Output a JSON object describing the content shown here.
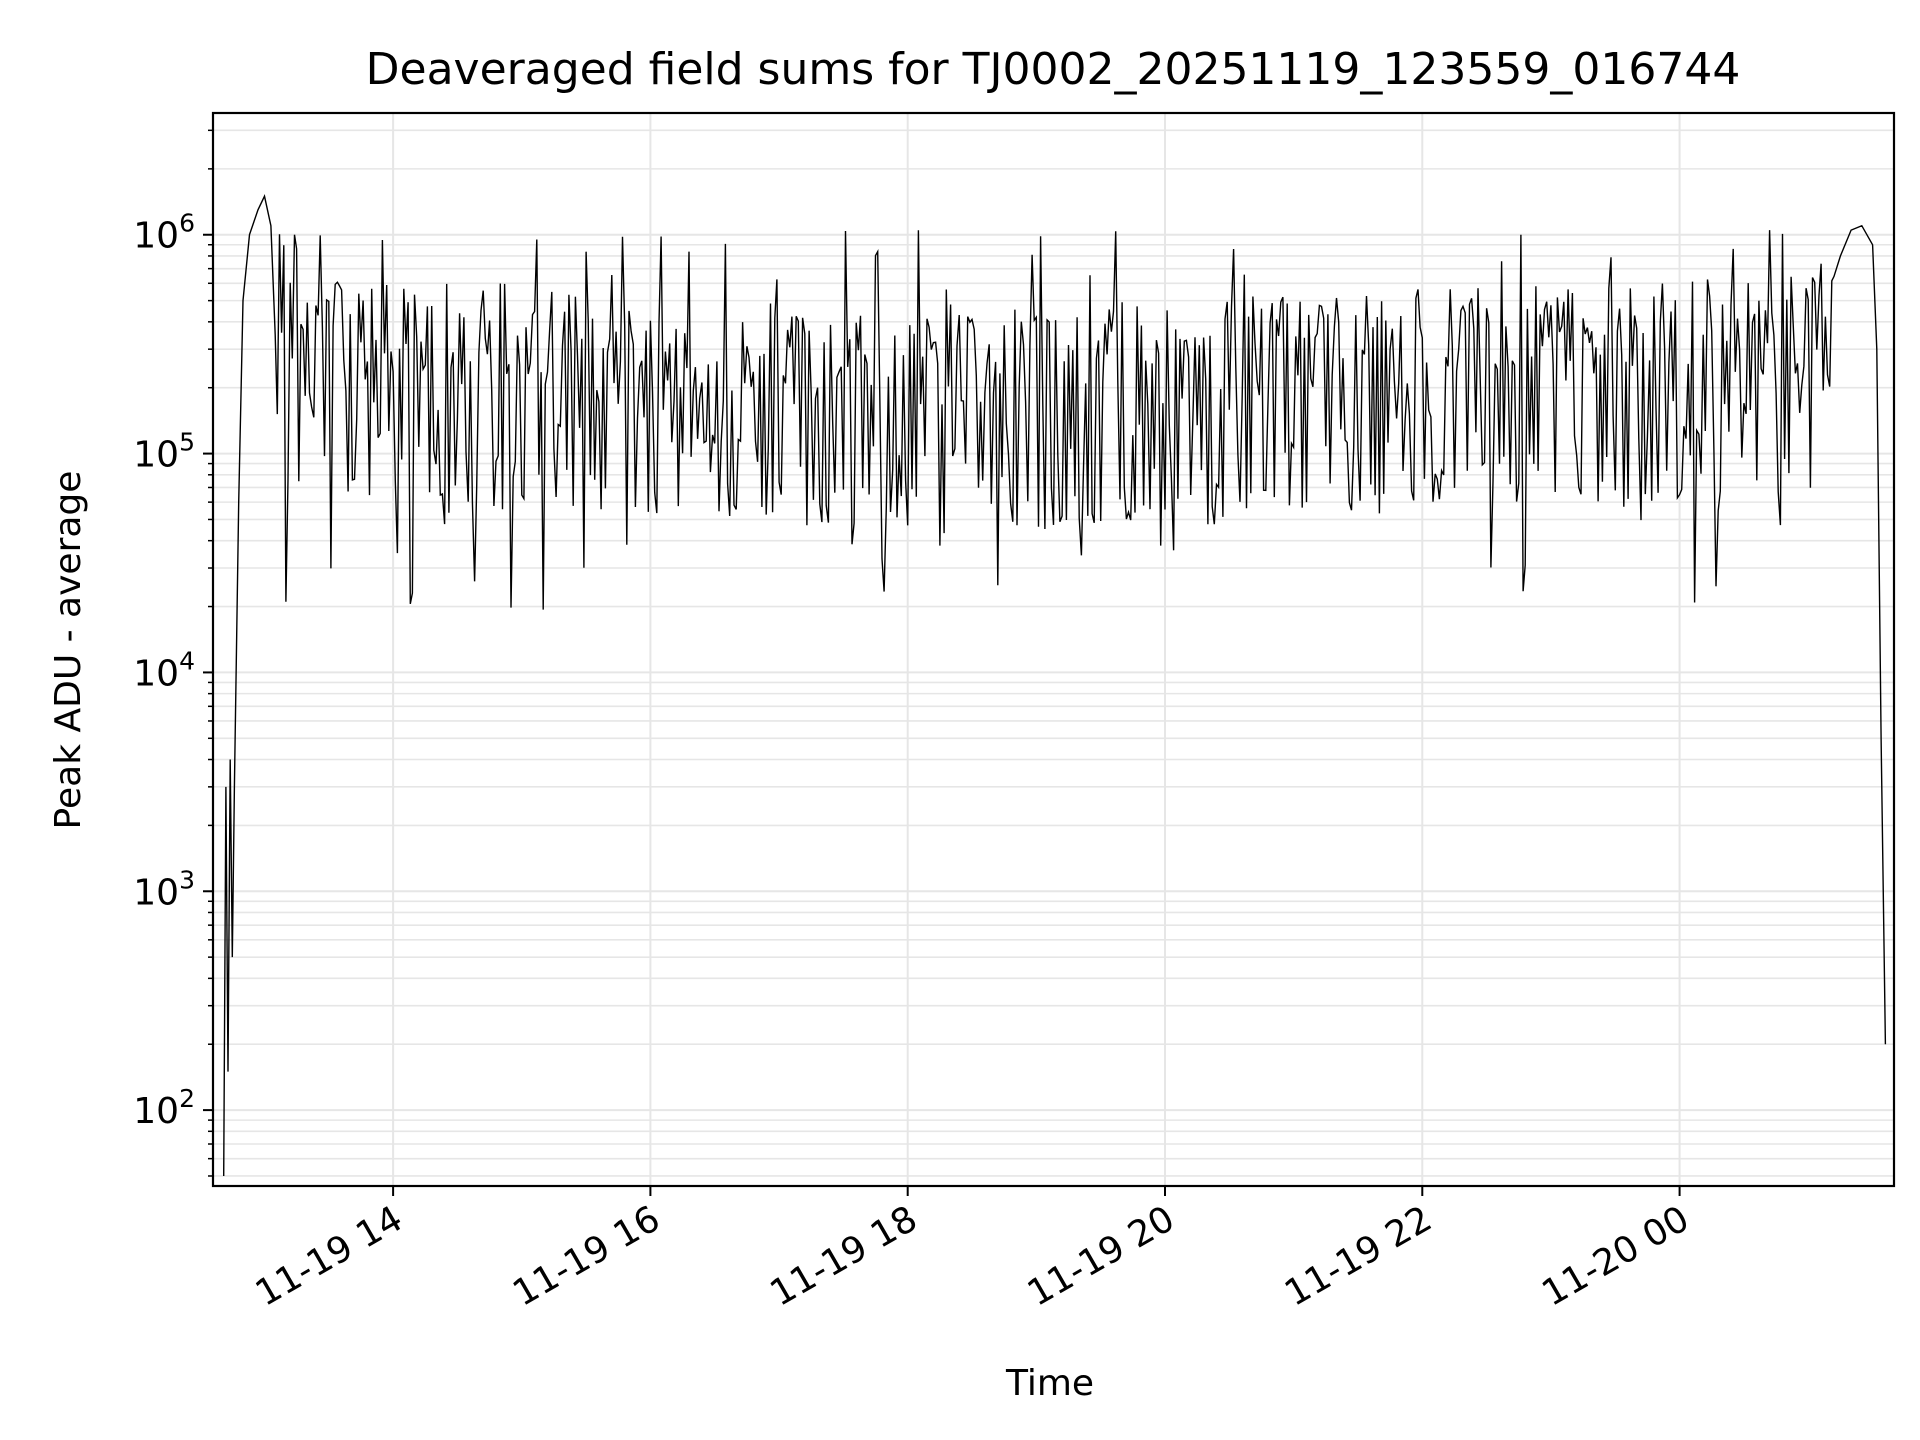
{
  "chart_data": {
    "type": "line",
    "title": "Deaveraged field sums for TJ0002_20251119_123559_016744",
    "xlabel": "Time",
    "ylabel": "Peak ADU - average",
    "yscale": "log",
    "ylim": [
      45,
      3600000
    ],
    "xlim": [
      "2025-11-19 12:36",
      "2025-11-20 01:40"
    ],
    "grid": true,
    "line_color": "#000000",
    "x_ticks": [
      {
        "x": "2025-11-19 14:00",
        "label": "11-19 14"
      },
      {
        "x": "2025-11-19 16:00",
        "label": "11-19 16"
      },
      {
        "x": "2025-11-19 18:00",
        "label": "11-19 18"
      },
      {
        "x": "2025-11-19 20:00",
        "label": "11-19 20"
      },
      {
        "x": "2025-11-19 22:00",
        "label": "11-19 22"
      },
      {
        "x": "2025-11-20 00:00",
        "label": "11-20 00"
      }
    ],
    "y_ticks": [
      {
        "value": 100,
        "base": "10",
        "exp": "2"
      },
      {
        "value": 1000,
        "base": "10",
        "exp": "3"
      },
      {
        "value": 10000,
        "base": "10",
        "exp": "4"
      },
      {
        "value": 100000,
        "base": "10",
        "exp": "5"
      },
      {
        "value": 1000000,
        "base": "10",
        "exp": "6"
      }
    ],
    "series": [
      {
        "x": [
          "2025-11-19 12:41",
          "2025-11-19 12:42",
          "2025-11-19 12:43",
          "2025-11-19 12:44",
          "2025-11-19 12:45",
          "2025-11-19 12:46",
          "2025-11-19 12:48",
          "2025-11-19 12:50",
          "2025-11-19 12:53",
          "2025-11-19 12:57",
          "2025-11-19 13:00",
          "2025-11-19 13:03",
          "2025-11-19 13:05",
          "2025-11-19 13:08",
          "2025-11-19 13:12",
          "2025-11-19 13:20",
          "2025-11-19 13:30",
          "2025-11-19 13:45",
          "2025-11-19 14:00",
          "2025-11-19 14:30",
          "2025-11-19 15:00",
          "2025-11-19 15:30",
          "2025-11-19 16:00",
          "2025-11-19 16:30",
          "2025-11-19 17:00",
          "2025-11-19 17:30",
          "2025-11-19 18:00",
          "2025-11-19 18:30",
          "2025-11-19 19:00",
          "2025-11-19 19:30",
          "2025-11-19 20:00",
          "2025-11-19 20:30",
          "2025-11-19 21:00",
          "2025-11-19 21:30",
          "2025-11-19 22:00",
          "2025-11-19 22:30",
          "2025-11-19 23:00",
          "2025-11-19 23:30",
          "2025-11-20 00:00",
          "2025-11-20 00:30",
          "2025-11-20 01:00",
          "2025-11-20 01:10",
          "2025-11-20 01:15",
          "2025-11-20 01:20",
          "2025-11-20 01:25",
          "2025-11-20 01:30",
          "2025-11-20 01:32",
          "2025-11-20 01:34",
          "2025-11-20 01:36"
        ],
        "y": [
          50,
          3000,
          150,
          4000,
          500,
          3000,
          60000,
          500000,
          1000000,
          1300000,
          1500000,
          1100000,
          700000,
          500000,
          400000,
          380000,
          370000,
          360000,
          350000,
          340000,
          330000,
          310000,
          300000,
          290000,
          280000,
          260000,
          250000,
          260000,
          270000,
          280000,
          270000,
          290000,
          310000,
          330000,
          350000,
          360000,
          360000,
          360000,
          360000,
          360000,
          360000,
          450000,
          800000,
          1050000,
          1100000,
          900000,
          300000,
          5000,
          200
        ],
        "noise": {
          "seed": 7,
          "step_minutes": 1,
          "down_range": [
            0.3,
            6
          ],
          "drop_prob": 0.05,
          "drop_range": [
            18000,
            60000
          ],
          "spike_prob": 0.03,
          "spike_range": [
            800000,
            1050000
          ],
          "from": "2025-11-19 13:05",
          "to": "2025-11-20 01:12"
        }
      }
    ]
  }
}
